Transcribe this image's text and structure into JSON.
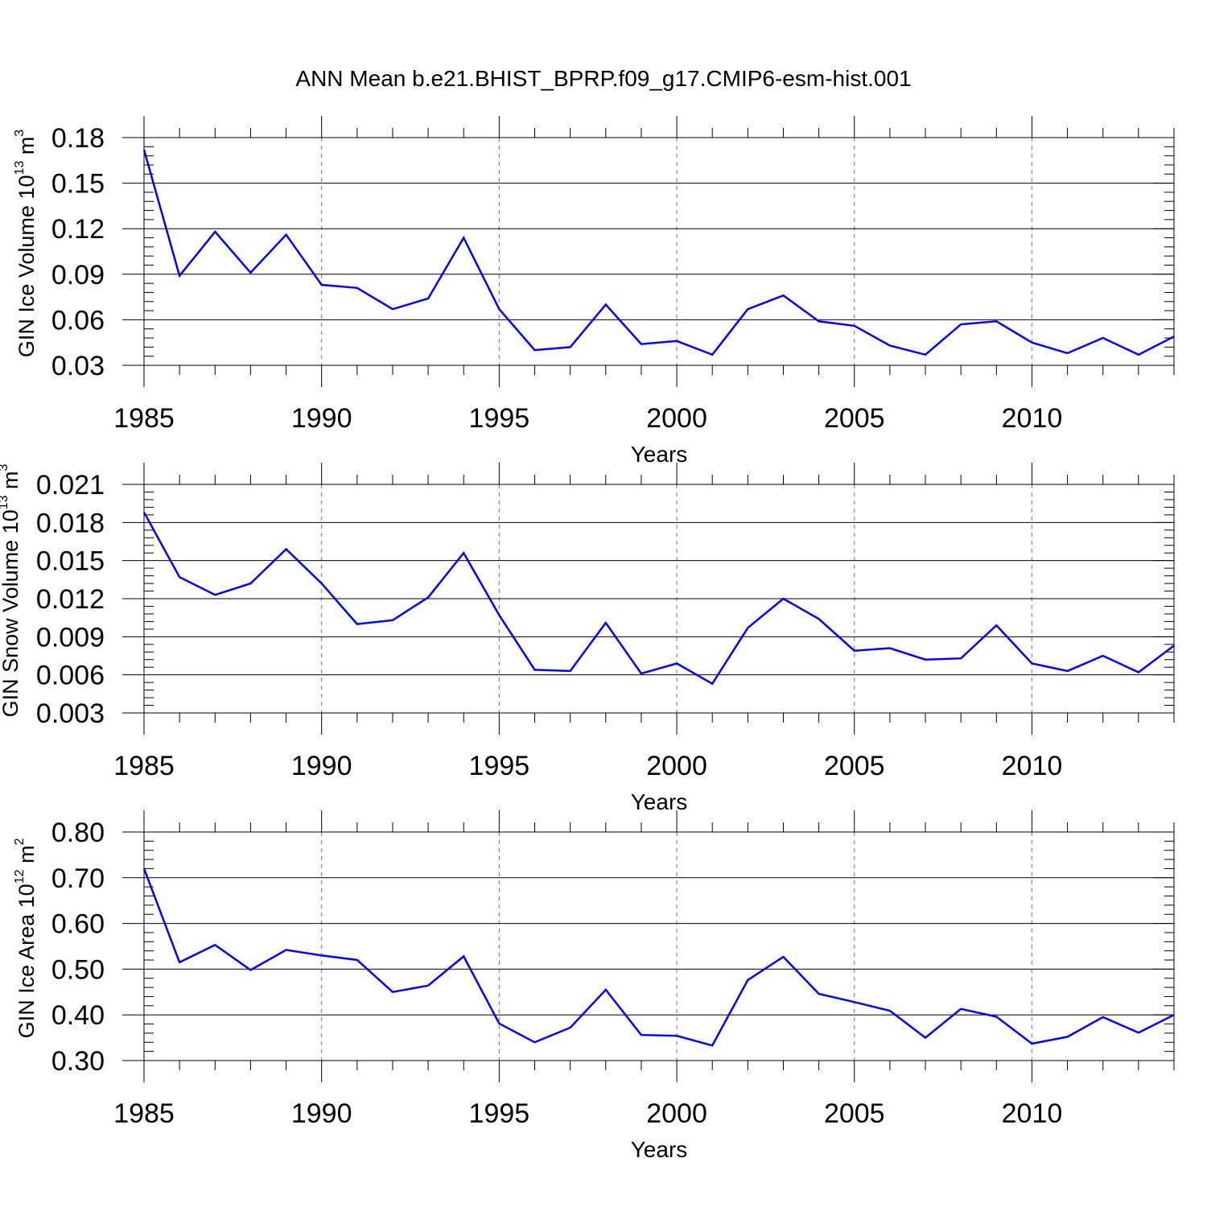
{
  "figure": {
    "title": "ANN Mean b.e21.BHIST_BPRP.f09_g17.CMIP6-esm-hist.001"
  },
  "chart_data": [
    {
      "type": "line",
      "ylabel": "GIN Ice Volume 10",
      "ylabel_exp": "13",
      "ylabel_unit": "m",
      "ylabel_unit_exp": "3",
      "xlabel": "Years",
      "x": [
        1985,
        1986,
        1987,
        1988,
        1989,
        1990,
        1991,
        1992,
        1993,
        1994,
        1995,
        1996,
        1997,
        1998,
        1999,
        2000,
        2001,
        2002,
        2003,
        2004,
        2005,
        2006,
        2007,
        2008,
        2009,
        2010,
        2011,
        2012,
        2013,
        2014
      ],
      "xticks": [
        "1985",
        "1990",
        "1995",
        "2000",
        "2005",
        "2010"
      ],
      "yticks": [
        "0.03",
        "0.06",
        "0.09",
        "0.12",
        "0.15",
        "0.18"
      ],
      "ylim": [
        0.03,
        0.18
      ],
      "xlim": [
        1985,
        2014
      ],
      "grid": "dashed vertical at labeled years",
      "series": [
        {
          "name": "GIN Ice Volume",
          "color": "#0000ff",
          "values": [
            0.172,
            0.089,
            0.118,
            0.091,
            0.116,
            0.083,
            0.081,
            0.067,
            0.074,
            0.114,
            0.067,
            0.04,
            0.042,
            0.07,
            0.044,
            0.046,
            0.037,
            0.067,
            0.076,
            0.059,
            0.056,
            0.043,
            0.037,
            0.057,
            0.059,
            0.045,
            0.038,
            0.048,
            0.037,
            0.049
          ]
        }
      ]
    },
    {
      "type": "line",
      "ylabel": "GIN Snow Volume 10",
      "ylabel_exp": "13",
      "ylabel_unit": "m",
      "ylabel_unit_exp": "3",
      "xlabel": "Years",
      "x": [
        1985,
        1986,
        1987,
        1988,
        1989,
        1990,
        1991,
        1992,
        1993,
        1994,
        1995,
        1996,
        1997,
        1998,
        1999,
        2000,
        2001,
        2002,
        2003,
        2004,
        2005,
        2006,
        2007,
        2008,
        2009,
        2010,
        2011,
        2012,
        2013,
        2014
      ],
      "xticks": [
        "1985",
        "1990",
        "1995",
        "2000",
        "2005",
        "2010"
      ],
      "yticks": [
        "0.003",
        "0.006",
        "0.009",
        "0.012",
        "0.015",
        "0.018",
        "0.021"
      ],
      "ylim": [
        0.003,
        0.021
      ],
      "xlim": [
        1985,
        2014
      ],
      "grid": "dashed vertical at labeled years",
      "series": [
        {
          "name": "GIN Snow Volume",
          "color": "#0000ff",
          "values": [
            0.0188,
            0.0137,
            0.0123,
            0.0132,
            0.0159,
            0.0132,
            0.01,
            0.0103,
            0.0121,
            0.0156,
            0.0107,
            0.0064,
            0.0063,
            0.0101,
            0.0061,
            0.0069,
            0.0053,
            0.0097,
            0.012,
            0.0104,
            0.0079,
            0.0081,
            0.0072,
            0.0073,
            0.0099,
            0.0069,
            0.0063,
            0.0075,
            0.0062,
            0.0083
          ]
        }
      ]
    },
    {
      "type": "line",
      "ylabel": "GIN Ice Area 10",
      "ylabel_exp": "12",
      "ylabel_unit": "m",
      "ylabel_unit_exp": "2",
      "xlabel": "Years",
      "x": [
        1985,
        1986,
        1987,
        1988,
        1989,
        1990,
        1991,
        1992,
        1993,
        1994,
        1995,
        1996,
        1997,
        1998,
        1999,
        2000,
        2001,
        2002,
        2003,
        2004,
        2005,
        2006,
        2007,
        2008,
        2009,
        2010,
        2011,
        2012,
        2013,
        2014
      ],
      "xticks": [
        "1985",
        "1990",
        "1995",
        "2000",
        "2005",
        "2010"
      ],
      "yticks": [
        "0.30",
        "0.40",
        "0.50",
        "0.60",
        "0.70",
        "0.80"
      ],
      "ylim": [
        0.3,
        0.8
      ],
      "xlim": [
        1985,
        2014
      ],
      "grid": "dashed vertical at labeled years",
      "series": [
        {
          "name": "GIN Ice Area",
          "color": "#0000ff",
          "values": [
            0.72,
            0.515,
            0.553,
            0.498,
            0.542,
            0.53,
            0.52,
            0.45,
            0.464,
            0.528,
            0.381,
            0.34,
            0.372,
            0.455,
            0.356,
            0.354,
            0.333,
            0.476,
            0.527,
            0.446,
            0.428,
            0.409,
            0.35,
            0.413,
            0.396,
            0.337,
            0.352,
            0.395,
            0.361,
            0.4
          ]
        }
      ]
    }
  ]
}
